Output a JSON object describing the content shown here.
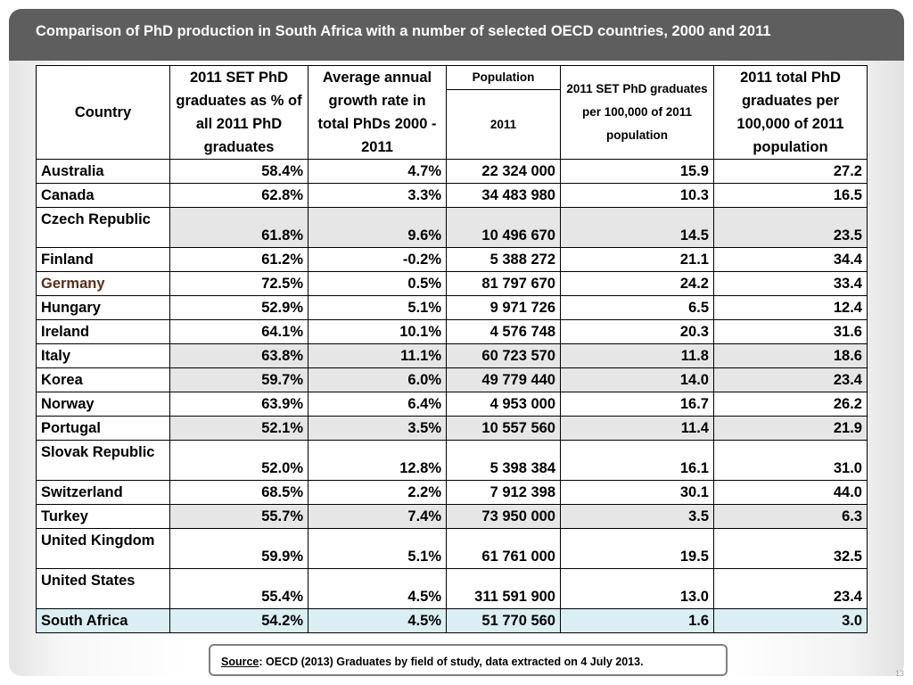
{
  "title": "Comparison of PhD production in South Africa with a number of selected OECD countries, 2000 and 2011",
  "table": {
    "headers": {
      "country": "Country",
      "set_pct": "2011 SET PhD graduates as % of all 2011 PhD graduates",
      "growth": "Average annual growth rate in total PhDs 2000 - 2011",
      "population_group": "Population",
      "population_year": "2011",
      "set_per_100k": "2011 SET PhD graduates per 100,000 of 2011 population",
      "total_per_100k": "2011 total PhD graduates per 100,000 of 2011 population"
    },
    "rows": [
      {
        "country": "Australia",
        "set_pct": "58.4%",
        "growth": "4.7%",
        "population": "22 324 000",
        "set_per_100k": "15.9",
        "total_per_100k": "27.2",
        "shade": "white",
        "tall": false
      },
      {
        "country": "Canada",
        "set_pct": "62.8%",
        "growth": "3.3%",
        "population": "34 483 980",
        "set_per_100k": "10.3",
        "total_per_100k": "16.5",
        "shade": "white",
        "tall": false
      },
      {
        "country": "Czech Republic",
        "set_pct": "61.8%",
        "growth": "9.6%",
        "population": "10 496 670",
        "set_per_100k": "14.5",
        "total_per_100k": "23.5",
        "shade": "grey",
        "tall": true
      },
      {
        "country": "Finland",
        "set_pct": "61.2%",
        "growth": "-0.2%",
        "population": "5 388 272",
        "set_per_100k": "21.1",
        "total_per_100k": "34.4",
        "shade": "white",
        "tall": false
      },
      {
        "country": "Germany",
        "set_pct": "72.5%",
        "growth": "0.5%",
        "population": "81 797 670",
        "set_per_100k": "24.2",
        "total_per_100k": "33.4",
        "shade": "white",
        "tall": false,
        "country_color": "#5a2d1a"
      },
      {
        "country": "Hungary",
        "set_pct": "52.9%",
        "growth": "5.1%",
        "population": "9 971 726",
        "set_per_100k": "6.5",
        "total_per_100k": "12.4",
        "shade": "white",
        "tall": false
      },
      {
        "country": "Ireland",
        "set_pct": "64.1%",
        "growth": "10.1%",
        "population": "4 576 748",
        "set_per_100k": "20.3",
        "total_per_100k": "31.6",
        "shade": "white",
        "tall": false
      },
      {
        "country": "Italy",
        "set_pct": "63.8%",
        "growth": "11.1%",
        "population": "60 723 570",
        "set_per_100k": "11.8",
        "total_per_100k": "18.6",
        "shade": "grey",
        "tall": false
      },
      {
        "country": "Korea",
        "set_pct": "59.7%",
        "growth": "6.0%",
        "population": "49 779 440",
        "set_per_100k": "14.0",
        "total_per_100k": "23.4",
        "shade": "grey",
        "tall": false
      },
      {
        "country": "Norway",
        "set_pct": "63.9%",
        "growth": "6.4%",
        "population": "4 953 000",
        "set_per_100k": "16.7",
        "total_per_100k": "26.2",
        "shade": "white",
        "tall": false
      },
      {
        "country": "Portugal",
        "set_pct": "52.1%",
        "growth": "3.5%",
        "population": "10 557 560",
        "set_per_100k": "11.4",
        "total_per_100k": "21.9",
        "shade": "grey",
        "tall": false
      },
      {
        "country": "Slovak Republic",
        "set_pct": "52.0%",
        "growth": "12.8%",
        "population": "5 398 384",
        "set_per_100k": "16.1",
        "total_per_100k": "31.0",
        "shade": "white",
        "tall": true
      },
      {
        "country": "Switzerland",
        "set_pct": "68.5%",
        "growth": "2.2%",
        "population": "7 912 398",
        "set_per_100k": "30.1",
        "total_per_100k": "44.0",
        "shade": "white",
        "tall": false
      },
      {
        "country": "Turkey",
        "set_pct": "55.7%",
        "growth": "7.4%",
        "population": "73 950 000",
        "set_per_100k": "3.5",
        "total_per_100k": "6.3",
        "shade": "grey",
        "tall": false
      },
      {
        "country": "United Kingdom",
        "set_pct": "59.9%",
        "growth": "5.1%",
        "population": "61 761 000",
        "set_per_100k": "19.5",
        "total_per_100k": "32.5",
        "shade": "white",
        "tall": true
      },
      {
        "country": "United States",
        "set_pct": "55.4%",
        "growth": "4.5%",
        "population": "311 591 900",
        "set_per_100k": "13.0",
        "total_per_100k": "23.4",
        "shade": "white",
        "tall": true
      },
      {
        "country": "South Africa",
        "set_pct": "54.2%",
        "growth": "4.5%",
        "population": "51 770 560",
        "set_per_100k": "1.6",
        "total_per_100k": "3.0",
        "shade": "blue",
        "tall": false
      }
    ]
  },
  "source": {
    "label": "Source",
    "text": ": OECD (2013) Graduates by field of study, data extracted on 4 July 2013."
  },
  "page_number": "13",
  "colors": {
    "title_bar": "#5e5e5e",
    "row_grey": "#e6e6e6",
    "row_highlight": "#daeef3",
    "germany_text": "#5a2d1a"
  }
}
